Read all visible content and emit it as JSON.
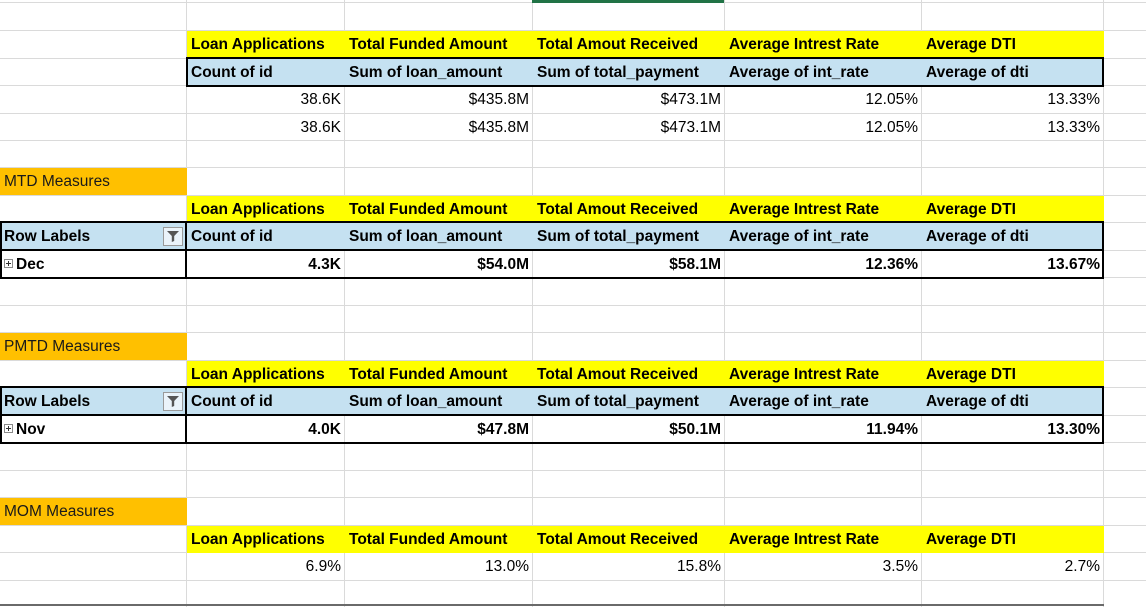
{
  "headers": {
    "loan_applications": "Loan Applications",
    "total_funded": "Total Funded Amount",
    "total_received": "Total Amout Received",
    "avg_rate": "Average Intrest Rate",
    "avg_dti": "Average DTI"
  },
  "subheaders": {
    "count_id": "Count of id",
    "sum_loan": "Sum of loan_amount",
    "sum_payment": "Sum of total_payment",
    "avg_int": "Average of int_rate",
    "avg_dti": "Average of dti"
  },
  "row_labels": "Row Labels",
  "total": {
    "row1": [
      "38.6K",
      "$435.8M",
      "$473.1M",
      "12.05%",
      "13.33%"
    ],
    "row2": [
      "38.6K",
      "$435.8M",
      "$473.1M",
      "12.05%",
      "13.33%"
    ]
  },
  "mtd": {
    "title": "MTD Measures",
    "month": "Dec",
    "values": [
      "4.3K",
      "$54.0M",
      "$58.1M",
      "12.36%",
      "13.67%"
    ]
  },
  "pmtd": {
    "title": "PMTD Measures",
    "month": "Nov",
    "values": [
      "4.0K",
      "$47.8M",
      "$50.1M",
      "11.94%",
      "13.30%"
    ]
  },
  "mom": {
    "title": "MOM Measures",
    "values": [
      "6.9%",
      "13.0%",
      "15.8%",
      "3.5%",
      "2.7%"
    ]
  },
  "colors": {
    "header_yellow": "#ffff00",
    "pivot_blue": "#c5e1f1",
    "section_orange": "#ffc000",
    "selection_green": "#217346"
  },
  "icons": {
    "filter": "filter-funnel-icon",
    "expand": "expand-plus-icon"
  }
}
